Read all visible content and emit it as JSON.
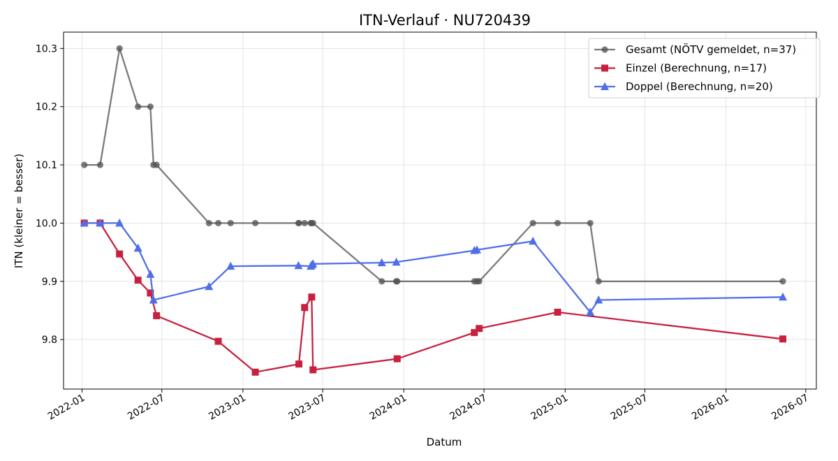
{
  "chart_data": {
    "type": "line",
    "title": "ITN-Verlauf · NU720439",
    "xlabel": "Datum",
    "ylabel": "ITN  (kleiner = besser)",
    "x_type": "date",
    "xlim": [
      "2021-11-20",
      "2026-07-25"
    ],
    "ylim": [
      9.715,
      10.328
    ],
    "x_ticks": [
      "2022-01-01",
      "2022-07-01",
      "2023-01-01",
      "2023-07-01",
      "2024-01-01",
      "2024-07-01",
      "2025-01-01",
      "2025-07-01",
      "2026-01-01",
      "2026-07-01"
    ],
    "x_tick_labels": [
      "2022-01",
      "2022-07",
      "2023-01",
      "2023-07",
      "2024-01",
      "2024-07",
      "2025-01",
      "2025-07",
      "2026-01",
      "2026-07"
    ],
    "y_ticks": [
      9.8,
      9.9,
      10.0,
      10.1,
      10.2,
      10.3
    ],
    "y_tick_labels": [
      "9.8",
      "9.9",
      "10.0",
      "10.1",
      "10.2",
      "10.3"
    ],
    "grid": true,
    "legend_position": "top-right",
    "series": [
      {
        "name": "Gesamt (NÖTV gemeldet, n=37)",
        "color": "#555555",
        "marker": "circle",
        "points": [
          [
            "2022-01-06",
            10.1
          ],
          [
            "2022-02-11",
            10.1
          ],
          [
            "2022-03-27",
            10.3
          ],
          [
            "2022-05-08",
            10.2
          ],
          [
            "2022-06-05",
            10.2
          ],
          [
            "2022-06-12",
            10.1
          ],
          [
            "2022-06-19",
            10.1
          ],
          [
            "2022-10-16",
            10.0
          ],
          [
            "2022-11-06",
            10.0
          ],
          [
            "2022-12-04",
            10.0
          ],
          [
            "2023-01-29",
            10.0
          ],
          [
            "2023-05-07",
            10.0
          ],
          [
            "2023-05-08",
            10.0
          ],
          [
            "2023-05-21",
            10.0
          ],
          [
            "2023-06-04",
            10.0
          ],
          [
            "2023-06-06",
            10.0
          ],
          [
            "2023-06-09",
            10.0
          ],
          [
            "2023-11-12",
            9.9
          ],
          [
            "2023-12-15",
            9.9
          ],
          [
            "2023-12-17",
            9.9
          ],
          [
            "2024-06-09",
            9.9
          ],
          [
            "2024-06-15",
            9.9
          ],
          [
            "2024-06-20",
            9.9
          ],
          [
            "2024-10-20",
            10.0
          ],
          [
            "2024-12-15",
            10.0
          ],
          [
            "2025-02-27",
            10.0
          ],
          [
            "2025-03-18",
            9.9
          ],
          [
            "2026-05-10",
            9.9
          ]
        ]
      },
      {
        "name": "Einzel (Berechnung, n=17)",
        "color": "#c8213f",
        "marker": "square",
        "points": [
          [
            "2022-01-06",
            10.0
          ],
          [
            "2022-02-11",
            10.0
          ],
          [
            "2022-03-27",
            9.947
          ],
          [
            "2022-05-08",
            9.902
          ],
          [
            "2022-06-05",
            9.88
          ],
          [
            "2022-06-19",
            9.841
          ],
          [
            "2022-11-06",
            9.797
          ],
          [
            "2023-01-29",
            9.744
          ],
          [
            "2023-05-08",
            9.758
          ],
          [
            "2023-05-21",
            9.855
          ],
          [
            "2023-06-06",
            9.873
          ],
          [
            "2023-06-09",
            9.748
          ],
          [
            "2023-12-17",
            9.767
          ],
          [
            "2024-06-09",
            9.812
          ],
          [
            "2024-06-20",
            9.819
          ],
          [
            "2024-12-15",
            9.847
          ],
          [
            "2026-05-10",
            9.801
          ]
        ]
      },
      {
        "name": "Doppel (Berechnung, n=20)",
        "color": "#4f6fe8",
        "marker": "triangle",
        "points": [
          [
            "2022-01-06",
            10.0
          ],
          [
            "2022-02-11",
            10.0
          ],
          [
            "2022-03-27",
            10.0
          ],
          [
            "2022-05-08",
            9.957
          ],
          [
            "2022-06-05",
            9.912
          ],
          [
            "2022-06-12",
            9.868
          ],
          [
            "2022-10-16",
            9.891
          ],
          [
            "2022-12-04",
            9.926
          ],
          [
            "2023-05-07",
            9.927
          ],
          [
            "2023-06-04",
            9.926
          ],
          [
            "2023-06-06",
            9.928
          ],
          [
            "2023-06-09",
            9.93
          ],
          [
            "2023-11-12",
            9.932
          ],
          [
            "2023-12-15",
            9.933
          ],
          [
            "2024-06-09",
            9.953
          ],
          [
            "2024-06-15",
            9.954
          ],
          [
            "2024-10-20",
            9.969
          ],
          [
            "2025-02-27",
            9.847
          ],
          [
            "2025-03-18",
            9.868
          ],
          [
            "2026-05-10",
            9.873
          ]
        ]
      }
    ]
  }
}
